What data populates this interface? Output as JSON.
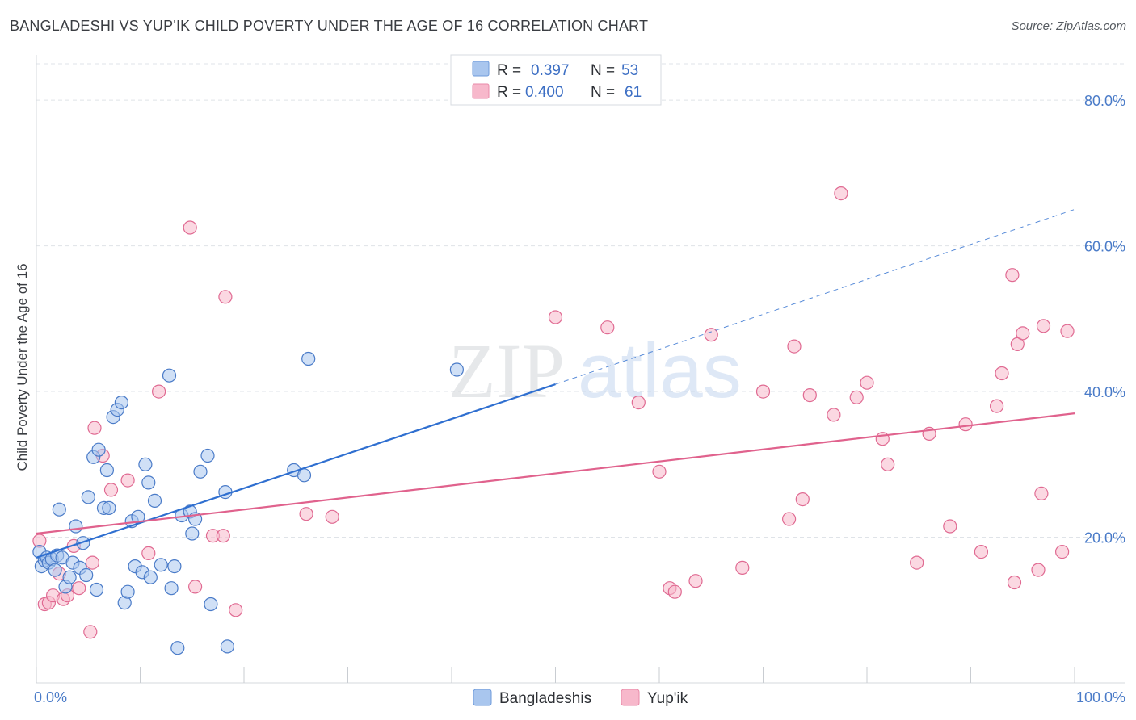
{
  "header": {
    "title": "BANGLADESHI VS YUP'IK CHILD POVERTY UNDER THE AGE OF 16 CORRELATION CHART",
    "source": "Source: ZipAtlas.com"
  },
  "watermark": {
    "zip": "ZIP",
    "atlas": "atlas"
  },
  "colors": {
    "blue": "#4a7bc8",
    "blue_fill": "#a9c6ee",
    "blue_line": "#2f6fd0",
    "pink": "#e06a92",
    "pink_fill": "#f7b8cb",
    "pink_line": "#e0628d",
    "grid": "#dfe3e8"
  },
  "legend": {
    "rows": [
      {
        "r_label": "R = ",
        "r_value": "0.397",
        "n_label": "N = ",
        "n_value": "53",
        "series": "Bangladeshis"
      },
      {
        "r_label": "R = ",
        "r_value": "0.400",
        "n_label": "N = ",
        "n_value": "61",
        "series": "Yup'ik"
      }
    ]
  },
  "chart_data": {
    "type": "scatter",
    "title": "BANGLADESHI VS YUP'IK CHILD POVERTY UNDER THE AGE OF 16 CORRELATION CHART",
    "xlabel": "",
    "ylabel": "Child Poverty Under the Age of 16",
    "xlim": [
      0,
      100
    ],
    "ylim": [
      0,
      85
    ],
    "x_tick_labels": [
      "0.0%",
      "100.0%"
    ],
    "y_ticks": [
      20,
      40,
      60,
      80
    ],
    "y_tick_labels": [
      "20.0%",
      "40.0%",
      "60.0%",
      "80.0%"
    ],
    "grid": true,
    "legend_position": "top-center",
    "series": [
      {
        "name": "Bangladeshis",
        "r": 0.397,
        "n": 53,
        "trend": {
          "x0": 0,
          "y0": 17.2,
          "x1": 50,
          "y1": 41.0,
          "dashed_to_x": 100,
          "dashed_to_y": 65.0
        },
        "points": [
          [
            0.3,
            18.0
          ],
          [
            0.5,
            16.0
          ],
          [
            0.8,
            16.8
          ],
          [
            1.0,
            17.2
          ],
          [
            1.2,
            16.5
          ],
          [
            1.5,
            17.0
          ],
          [
            1.8,
            15.5
          ],
          [
            2.0,
            17.5
          ],
          [
            2.2,
            23.8
          ],
          [
            2.5,
            17.2
          ],
          [
            2.8,
            13.2
          ],
          [
            3.2,
            14.5
          ],
          [
            3.5,
            16.5
          ],
          [
            3.8,
            21.5
          ],
          [
            4.2,
            15.8
          ],
          [
            4.5,
            19.2
          ],
          [
            4.8,
            14.8
          ],
          [
            5.0,
            25.5
          ],
          [
            5.5,
            31.0
          ],
          [
            5.8,
            12.8
          ],
          [
            6.0,
            32.0
          ],
          [
            6.5,
            24.0
          ],
          [
            6.8,
            29.2
          ],
          [
            7.0,
            24.0
          ],
          [
            7.4,
            36.5
          ],
          [
            7.8,
            37.5
          ],
          [
            8.2,
            38.5
          ],
          [
            8.5,
            11.0
          ],
          [
            8.8,
            12.5
          ],
          [
            9.2,
            22.2
          ],
          [
            9.5,
            16.0
          ],
          [
            9.8,
            22.8
          ],
          [
            10.2,
            15.2
          ],
          [
            10.5,
            30.0
          ],
          [
            10.8,
            27.5
          ],
          [
            11.0,
            14.5
          ],
          [
            11.4,
            25.0
          ],
          [
            12.0,
            16.2
          ],
          [
            12.8,
            42.2
          ],
          [
            13.0,
            13.0
          ],
          [
            13.3,
            16.0
          ],
          [
            13.6,
            4.8
          ],
          [
            14.0,
            23.0
          ],
          [
            14.8,
            23.5
          ],
          [
            15.0,
            20.5
          ],
          [
            15.3,
            22.5
          ],
          [
            15.8,
            29.0
          ],
          [
            16.5,
            31.2
          ],
          [
            16.8,
            10.8
          ],
          [
            18.2,
            26.2
          ],
          [
            18.4,
            5.0
          ],
          [
            24.8,
            29.2
          ],
          [
            25.8,
            28.5
          ],
          [
            26.2,
            44.5
          ],
          [
            40.5,
            43.0
          ]
        ]
      },
      {
        "name": "Yup'ik",
        "r": 0.4,
        "n": 61,
        "trend": {
          "x0": 0,
          "y0": 20.5,
          "x1": 100,
          "y1": 37.0
        },
        "points": [
          [
            0.3,
            19.5
          ],
          [
            0.8,
            10.8
          ],
          [
            1.2,
            11.0
          ],
          [
            1.6,
            12.0
          ],
          [
            2.2,
            15.0
          ],
          [
            2.6,
            11.5
          ],
          [
            3.0,
            12.0
          ],
          [
            3.6,
            18.8
          ],
          [
            4.1,
            13.0
          ],
          [
            5.2,
            7.0
          ],
          [
            5.4,
            16.5
          ],
          [
            5.6,
            35.0
          ],
          [
            6.4,
            31.2
          ],
          [
            7.2,
            26.5
          ],
          [
            8.8,
            27.8
          ],
          [
            10.8,
            17.8
          ],
          [
            11.8,
            40.0
          ],
          [
            14.8,
            62.5
          ],
          [
            15.3,
            13.2
          ],
          [
            17.0,
            20.2
          ],
          [
            18.0,
            20.2
          ],
          [
            18.2,
            53.0
          ],
          [
            19.2,
            10.0
          ],
          [
            26.0,
            23.2
          ],
          [
            28.5,
            22.8
          ],
          [
            50.0,
            50.2
          ],
          [
            55.0,
            48.8
          ],
          [
            58.0,
            38.5
          ],
          [
            60.0,
            29.0
          ],
          [
            61.0,
            13.0
          ],
          [
            61.5,
            12.5
          ],
          [
            63.5,
            14.0
          ],
          [
            65.0,
            47.8
          ],
          [
            68.0,
            15.8
          ],
          [
            70.0,
            40.0
          ],
          [
            72.5,
            22.5
          ],
          [
            73.0,
            46.2
          ],
          [
            73.8,
            25.2
          ],
          [
            74.5,
            39.5
          ],
          [
            76.8,
            36.8
          ],
          [
            77.5,
            67.2
          ],
          [
            79.0,
            39.2
          ],
          [
            80.0,
            41.2
          ],
          [
            81.5,
            33.5
          ],
          [
            82.0,
            30.0
          ],
          [
            84.8,
            16.5
          ],
          [
            86.0,
            34.2
          ],
          [
            88.0,
            21.5
          ],
          [
            89.5,
            35.5
          ],
          [
            91.0,
            18.0
          ],
          [
            92.5,
            38.0
          ],
          [
            93.0,
            42.5
          ],
          [
            94.0,
            56.0
          ],
          [
            94.2,
            13.8
          ],
          [
            94.5,
            46.5
          ],
          [
            95.0,
            48.0
          ],
          [
            96.5,
            15.5
          ],
          [
            96.8,
            26.0
          ],
          [
            97.0,
            49.0
          ],
          [
            98.8,
            18.0
          ],
          [
            99.3,
            48.3
          ]
        ]
      }
    ]
  }
}
